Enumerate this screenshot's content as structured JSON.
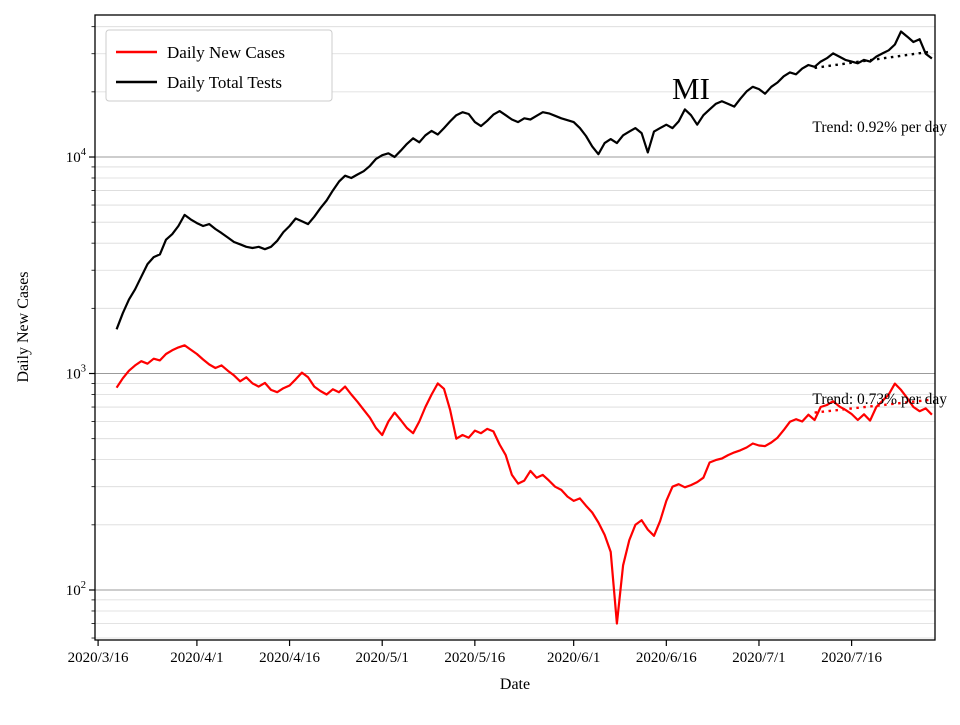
{
  "chart_data": {
    "type": "line",
    "state_label": "MI",
    "xlabel": "Date",
    "ylabel": "Daily New Cases",
    "y_scale": "log",
    "grid": "horizontal-log-major-minor",
    "y_tick_exponents": [
      2,
      3,
      4
    ],
    "legend": {
      "position": "upper-left",
      "entries": [
        {
          "label": "Daily New Cases",
          "color": "#ff0000"
        },
        {
          "label": "Daily Total Tests",
          "color": "#000000"
        }
      ]
    },
    "x_start_date": "2020/3/16",
    "x_ticks": [
      {
        "day": 0,
        "label": "2020/3/16"
      },
      {
        "day": 16,
        "label": "2020/4/1"
      },
      {
        "day": 31,
        "label": "2020/4/16"
      },
      {
        "day": 46,
        "label": "2020/5/1"
      },
      {
        "day": 61,
        "label": "2020/5/16"
      },
      {
        "day": 77,
        "label": "2020/6/1"
      },
      {
        "day": 92,
        "label": "2020/6/16"
      },
      {
        "day": 107,
        "label": "2020/7/1"
      },
      {
        "day": 122,
        "label": "2020/7/16"
      }
    ],
    "x_domain_days": [
      -0.5,
      135.5
    ],
    "y_log10_domain": [
      1.769,
      4.656
    ],
    "series": [
      {
        "name": "Daily New Cases",
        "color": "#ff0000",
        "start_day": 3,
        "values": [
          860,
          950,
          1030,
          1090,
          1140,
          1110,
          1170,
          1150,
          1230,
          1280,
          1320,
          1350,
          1290,
          1230,
          1160,
          1100,
          1060,
          1090,
          1030,
          980,
          920,
          960,
          900,
          870,
          905,
          840,
          820,
          855,
          880,
          940,
          1010,
          960,
          870,
          830,
          800,
          845,
          820,
          870,
          800,
          740,
          680,
          625,
          560,
          520,
          600,
          660,
          610,
          560,
          530,
          600,
          700,
          800,
          900,
          850,
          680,
          500,
          520,
          505,
          545,
          530,
          555,
          540,
          470,
          420,
          340,
          310,
          320,
          355,
          330,
          340,
          320,
          300,
          290,
          270,
          258,
          265,
          245,
          228,
          205,
          180,
          150,
          70,
          130,
          170,
          200,
          210,
          190,
          178,
          208,
          258,
          300,
          308,
          298,
          305,
          315,
          330,
          388,
          398,
          405,
          420,
          432,
          442,
          455,
          475,
          465,
          462,
          480,
          505,
          548,
          598,
          615,
          600,
          645,
          610,
          700,
          715,
          745,
          705,
          680,
          650,
          610,
          648,
          606,
          700,
          748,
          800,
          898,
          840,
          770,
          700,
          670,
          690,
          645
        ]
      },
      {
        "name": "Daily Total Tests",
        "color": "#000000",
        "start_day": 3,
        "values": [
          1600,
          1900,
          2200,
          2450,
          2800,
          3200,
          3450,
          3550,
          4150,
          4400,
          4800,
          5400,
          5150,
          4950,
          4800,
          4900,
          4650,
          4450,
          4250,
          4050,
          3950,
          3850,
          3800,
          3850,
          3750,
          3850,
          4100,
          4500,
          4800,
          5200,
          5050,
          4900,
          5300,
          5800,
          6300,
          7000,
          7700,
          8200,
          8000,
          8300,
          8600,
          9100,
          9800,
          10200,
          10400,
          10000,
          10700,
          11500,
          12200,
          11700,
          12600,
          13200,
          12700,
          13600,
          14600,
          15600,
          16100,
          15800,
          14500,
          13900,
          14700,
          15700,
          16300,
          15600,
          14900,
          14500,
          15100,
          14900,
          15500,
          16100,
          15900,
          15500,
          15100,
          14800,
          14500,
          13600,
          12500,
          11200,
          10300,
          11600,
          12100,
          11600,
          12600,
          13100,
          13600,
          12900,
          10500,
          13100,
          13600,
          14100,
          13600,
          14600,
          16600,
          15600,
          14100,
          15600,
          16600,
          17600,
          18100,
          17600,
          17100,
          18600,
          20100,
          21100,
          20600,
          19600,
          21100,
          22100,
          23600,
          24600,
          24100,
          25600,
          26600,
          26100,
          27600,
          28600,
          30100,
          29100,
          28100,
          27600,
          27100,
          28100,
          27600,
          29100,
          30100,
          31100,
          33100,
          38000,
          36000,
          34000,
          35000,
          30000,
          28500
        ]
      }
    ],
    "trends": [
      {
        "label": "Trend: 0.92% per day",
        "series": "Daily Total Tests",
        "rate_pct_per_day": 0.92,
        "start_day": 116,
        "end_day": 135,
        "start_value": 25800,
        "color": "#000000"
      },
      {
        "label": "Trend: 0.73% per day",
        "series": "Daily New Cases",
        "rate_pct_per_day": 0.73,
        "start_day": 116,
        "end_day": 135,
        "start_value": 660,
        "color": "#ff0000"
      }
    ]
  }
}
